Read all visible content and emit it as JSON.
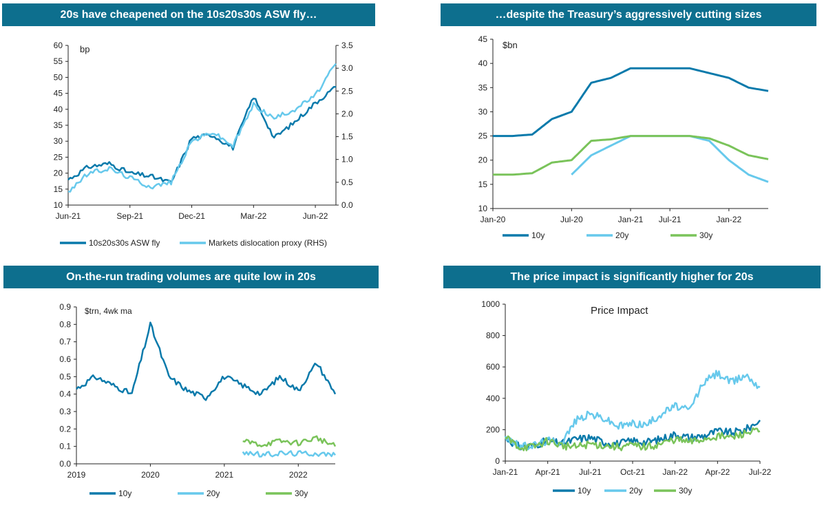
{
  "colors": {
    "header_bg": "#0d6f8e",
    "c10y": "#0a7aab",
    "c20y": "#67c9ec",
    "c30y": "#7ac35a"
  },
  "panel1": {
    "title": "20s have cheapened on the 10s20s30s ASW fly…",
    "unit": "bp"
  },
  "panel2": {
    "title": "…despite the Treasury’s aggressively cutting sizes",
    "unit": "$bn"
  },
  "panel3": {
    "title": "On-the-run trading volumes are quite low in 20s",
    "unit": "$trn, 4wk ma"
  },
  "panel4": {
    "title": "The price impact is significantly higher for 20s",
    "unit": "Price Impact"
  },
  "chart_data": [
    {
      "type": "line",
      "title": "20s have cheapened on the 10s20s30s ASW fly…",
      "x": [
        "Jun-21",
        "Jul-21",
        "Aug-21",
        "Sep-21",
        "Oct-21",
        "Nov-21",
        "Dec-21",
        "Jan-22",
        "Feb-22",
        "Mar-22",
        "Apr-22",
        "May-22",
        "Jun-22",
        "Jul-22"
      ],
      "x_ticks": [
        "Jun-21",
        "Sep-21",
        "Dec-21",
        "Mar-22",
        "Jun-22"
      ],
      "ylim": [
        10,
        60
      ],
      "y_ticks": [
        "10",
        "15",
        "20",
        "25",
        "30",
        "35",
        "40",
        "45",
        "50",
        "55",
        "60"
      ],
      "y2lim": [
        0.0,
        3.5
      ],
      "y2_ticks": [
        "0.0",
        "0.5",
        "1.0",
        "1.5",
        "2.0",
        "2.5",
        "3.0",
        "3.5"
      ],
      "legend": "bottom",
      "series": [
        {
          "name": "10s20s30s ASW fly",
          "axis": "left",
          "values": [
            18,
            22,
            23,
            20,
            19,
            17,
            31,
            32,
            28,
            44,
            31,
            36,
            42,
            47
          ]
        },
        {
          "name": "Markets dislocation proxy (RHS)",
          "axis": "right",
          "values": [
            0.3,
            0.7,
            0.8,
            0.6,
            0.4,
            0.5,
            1.4,
            1.6,
            1.3,
            2.2,
            1.9,
            2.1,
            2.4,
            3.1
          ]
        }
      ]
    },
    {
      "type": "line",
      "title": "…despite the Treasury’s aggressively cutting sizes",
      "x": [
        "Jan-20",
        "Mar-20",
        "Apr-20",
        "Jun-20",
        "Jul-20",
        "Sep-20",
        "Oct-20",
        "Jan-21",
        "Apr-21",
        "Jul-21",
        "Sep-21",
        "Oct-21",
        "Jan-22",
        "Apr-22",
        "Jun-22"
      ],
      "x_ticks": [
        "Jan-20",
        "Jul-20",
        "Jan-21",
        "Jul-21",
        "Jan-22"
      ],
      "ylim": [
        10,
        45
      ],
      "y_ticks": [
        "10",
        "15",
        "20",
        "25",
        "30",
        "35",
        "40",
        "45"
      ],
      "legend": "bottom",
      "series": [
        {
          "name": "10y",
          "values": [
            25,
            25,
            25.3,
            28.5,
            30,
            36,
            37,
            39,
            39,
            39,
            39,
            38,
            37,
            35,
            34.3
          ]
        },
        {
          "name": "20y",
          "values": [
            null,
            null,
            null,
            null,
            17,
            21,
            23,
            25,
            25,
            25,
            25,
            24,
            20,
            17,
            15.5
          ]
        },
        {
          "name": "30y",
          "values": [
            17,
            17,
            17.3,
            19.5,
            20,
            24,
            24.3,
            25,
            25,
            25,
            25,
            24.5,
            23,
            21,
            20.2
          ]
        }
      ]
    },
    {
      "type": "line",
      "title": "On-the-run trading volumes are quite low in 20s",
      "x": [
        "2019-01",
        "2019-04",
        "2019-07",
        "2019-10",
        "2020-01",
        "2020-04",
        "2020-07",
        "2020-10",
        "2021-01",
        "2021-04",
        "2021-07",
        "2021-10",
        "2022-01",
        "2022-04",
        "2022-07"
      ],
      "x_ticks": [
        "2019",
        "2020",
        "2021",
        "2022"
      ],
      "ylim": [
        0.0,
        0.9
      ],
      "y_ticks": [
        "0.0",
        "0.1",
        "0.2",
        "0.3",
        "0.4",
        "0.5",
        "0.6",
        "0.7",
        "0.8",
        "0.9"
      ],
      "legend": "bottom",
      "series": [
        {
          "name": "10y",
          "values": [
            0.43,
            0.5,
            0.45,
            0.4,
            0.8,
            0.5,
            0.42,
            0.38,
            0.5,
            0.45,
            0.4,
            0.5,
            0.42,
            0.58,
            0.4
          ]
        },
        {
          "name": "20y",
          "values": [
            null,
            null,
            null,
            null,
            null,
            null,
            null,
            null,
            null,
            0.07,
            0.05,
            0.06,
            0.06,
            0.06,
            0.05
          ]
        },
        {
          "name": "30y",
          "values": [
            null,
            null,
            null,
            null,
            null,
            null,
            null,
            null,
            null,
            0.13,
            0.11,
            0.13,
            0.12,
            0.15,
            0.1
          ]
        }
      ]
    },
    {
      "type": "line",
      "title": "The price impact is significantly higher for 20s",
      "x": [
        "Jan-21",
        "Feb-21",
        "Mar-21",
        "Apr-21",
        "May-21",
        "Jun-21",
        "Jul-21",
        "Aug-21",
        "Sep-21",
        "Oct-21",
        "Nov-21",
        "Dec-21",
        "Jan-22",
        "Feb-22",
        "Mar-22",
        "Apr-22",
        "May-22",
        "Jun-22",
        "Jul-22"
      ],
      "x_ticks": [
        "Jan-21",
        "Apr-21",
        "Jul-21",
        "Oct-21",
        "Jan-22",
        "Apr-22",
        "Jul-22"
      ],
      "ylim": [
        0,
        1000
      ],
      "y_ticks": [
        "0",
        "200",
        "400",
        "600",
        "800",
        "1000"
      ],
      "legend": "bottom",
      "series": [
        {
          "name": "10y",
          "values": [
            150,
            90,
            100,
            130,
            110,
            140,
            150,
            120,
            110,
            130,
            120,
            140,
            170,
            150,
            160,
            190,
            180,
            200,
            260
          ]
        },
        {
          "name": "20y",
          "values": [
            160,
            90,
            100,
            130,
            120,
            260,
            300,
            270,
            220,
            240,
            230,
            300,
            350,
            320,
            500,
            560,
            500,
            550,
            470
          ]
        },
        {
          "name": "30y",
          "values": [
            150,
            90,
            90,
            130,
            100,
            90,
            110,
            100,
            90,
            100,
            90,
            110,
            140,
            120,
            140,
            160,
            150,
            180,
            190
          ]
        }
      ]
    }
  ]
}
